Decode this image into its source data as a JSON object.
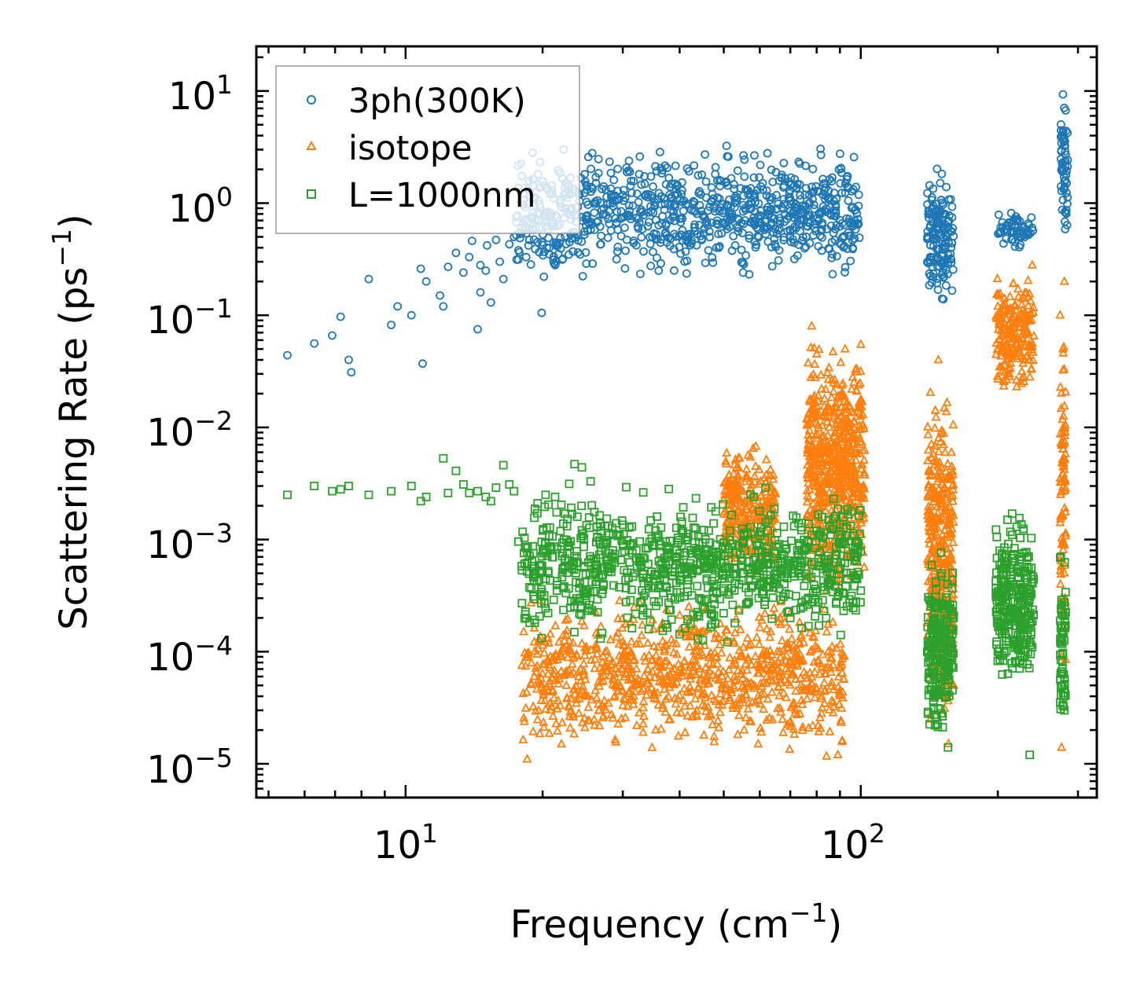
{
  "chart_data": {
    "type": "scatter",
    "xscale": "log",
    "yscale": "log",
    "xlim": [
      4.7,
      330
    ],
    "ylim": [
      5e-06,
      25
    ],
    "xlabel": {
      "main": "Frequency (cm",
      "sup": "−1",
      "close": ")"
    },
    "ylabel": {
      "main": "Scattering Rate (ps",
      "sup": "−1",
      "close": ")"
    },
    "xticks": [
      {
        "base": "10",
        "exp": "1",
        "value": 10
      },
      {
        "base": "10",
        "exp": "2",
        "value": 100
      }
    ],
    "yticks": [
      {
        "base": "10",
        "exp": "1",
        "value": 10
      },
      {
        "base": "10",
        "exp": "0",
        "value": 1
      },
      {
        "base": "10",
        "exp": "−1",
        "value": 0.1
      },
      {
        "base": "10",
        "exp": "−2",
        "value": 0.01
      },
      {
        "base": "10",
        "exp": "−3",
        "value": 0.001
      },
      {
        "base": "10",
        "exp": "−4",
        "value": 0.0001
      },
      {
        "base": "10",
        "exp": "−5",
        "value": 1e-05
      }
    ],
    "legend": {
      "position": "top-left"
    },
    "series": [
      {
        "name": "3ph(300K)",
        "marker": "circle",
        "color": "#1f77b4",
        "x": [
          5.5,
          6.3,
          6.9,
          7.2,
          7.5,
          7.6,
          8.3,
          9.3,
          9.6,
          10.3,
          10.8,
          10.9,
          11.1,
          11.9,
          12.1,
          12.4,
          12.9,
          13.4,
          13.8,
          14.0,
          14.4,
          14.6,
          14.6,
          15.0,
          15.1,
          15.4,
          15.8,
          16.1,
          16.4,
          16.9,
          17.3,
          17.7,
          18.0,
          18.4,
          19.0,
          19.5,
          19.9,
          20.3,
          20.8,
          21.3,
          21.8,
          22.4,
          22.9,
          23.5
        ],
        "y": [
          0.044,
          0.056,
          0.066,
          0.097,
          0.04,
          0.031,
          0.21,
          0.082,
          0.12,
          0.1,
          0.26,
          0.037,
          0.2,
          0.15,
          0.12,
          0.27,
          0.36,
          0.24,
          0.33,
          0.46,
          0.075,
          0.16,
          0.28,
          0.25,
          0.42,
          0.13,
          0.47,
          0.3,
          0.21,
          0.43,
          0.5,
          0.38,
          0.6,
          0.33,
          0.75,
          0.45,
          0.105,
          0.62,
          0.8,
          0.28,
          1.05,
          0.9,
          1.2,
          0.55
        ],
        "clusters": [
          {
            "x": [
              17.5,
              100
            ],
            "y": [
              0.18,
              3.7
            ],
            "note": "dense band"
          },
          {
            "x": [
              140,
              160
            ],
            "y": [
              0.09,
              2.5
            ],
            "note": "dense band"
          },
          {
            "x": [
              200,
              240
            ],
            "y": [
              0.35,
              0.9
            ],
            "note": "dense band"
          },
          {
            "x": [
              275,
              285
            ],
            "y": [
              0.36,
              12
            ],
            "note": "dense band"
          }
        ]
      },
      {
        "name": "isotope",
        "marker": "triangle",
        "color": "#ff7f0e",
        "x": [
          18.5,
          22,
          26,
          30,
          34,
          38,
          42,
          46,
          50,
          54,
          58,
          62,
          66,
          70,
          74,
          78,
          80,
          82,
          85,
          88,
          92,
          96,
          100,
          142,
          148,
          152,
          156,
          160,
          200,
          205,
          212,
          220,
          228,
          234,
          238,
          276,
          278,
          280
        ],
        "y": [
          1.1e-05,
          1.5e-05,
          2.2e-05,
          3.3e-05,
          5.2e-05,
          7.5e-05,
          0.00011,
          0.00024,
          0.00075,
          0.0023,
          0.0065,
          0.0021,
          0.00055,
          0.00022,
          0.00014,
          0.08,
          0.045,
          0.022,
          0.015,
          0.015,
          0.019,
          0.028,
          0.055,
          2.5e-05,
          0.04,
          0.007,
          0.0014,
          5e-05,
          0.12,
          0.08,
          0.03,
          0.023,
          0.028,
          0.055,
          0.28,
          1.4e-05,
          0.05,
          0.2
        ],
        "clusters": [
          {
            "x": [
              18,
              92
            ],
            "y": [
              1e-05,
              0.0004
            ],
            "note": "dense band"
          },
          {
            "x": [
              50,
              65
            ],
            "y": [
              0.0004,
              0.008
            ],
            "note": "peak"
          },
          {
            "x": [
              76,
              102
            ],
            "y": [
              0.0002,
              0.09
            ],
            "note": "dense band"
          },
          {
            "x": [
              140,
              160
            ],
            "y": [
              1e-05,
              0.045
            ],
            "note": "dense band"
          },
          {
            "x": [
              198,
              240
            ],
            "y": [
              0.015,
              0.3
            ],
            "note": "dense band"
          },
          {
            "x": [
              274,
              282
            ],
            "y": [
              3e-05,
              0.22
            ],
            "note": "dense band"
          }
        ]
      },
      {
        "name": "L=1000nm",
        "marker": "square",
        "color": "#2ca02c",
        "x": [
          5.5,
          6.3,
          6.9,
          7.2,
          7.5,
          8.3,
          9.3,
          10.3,
          10.8,
          11.1,
          12.1,
          12.4,
          12.9,
          13.4,
          13.8,
          14.4,
          15.0,
          15.4,
          15.8,
          16.4,
          16.9,
          17.3,
          17.7,
          18.0,
          18.4,
          19.5,
          20.3,
          21.3,
          22.4,
          23.5,
          24.4,
          25.5,
          27.2,
          29.5,
          33.0,
          36.0,
          40.0,
          45.0,
          50.0,
          55.0,
          60.0,
          65.0,
          70.0,
          75.0,
          80.0,
          85.0,
          90.0,
          95.0,
          100.0,
          140,
          145,
          150,
          155,
          160,
          200,
          205,
          210,
          215,
          220,
          230,
          235,
          275,
          278,
          280
        ],
        "y": [
          0.0025,
          0.003,
          0.0027,
          0.0028,
          0.003,
          0.0025,
          0.0027,
          0.003,
          0.0022,
          0.0024,
          0.0053,
          0.0026,
          0.0041,
          0.0031,
          0.0026,
          0.0027,
          0.0024,
          0.0022,
          0.0029,
          0.0046,
          0.0031,
          0.0027,
          0.00096,
          0.00058,
          0.0002,
          0.0021,
          0.0025,
          0.0024,
          0.0017,
          0.0047,
          0.0044,
          0.0033,
          0.0009,
          0.0011,
          0.0006,
          0.00064,
          0.00075,
          0.00025,
          0.00035,
          0.0005,
          0.0004,
          0.0004,
          0.0002,
          0.0008,
          0.0012,
          0.0015,
          0.0011,
          0.0007,
          0.00035,
          0.0001,
          0.0002,
          0.0005,
          0.0004,
          0.0002,
          0.0001,
          0.0003,
          0.0015,
          0.0017,
          0.0013,
          0.00012,
          1.2e-05,
          0.0007,
          0.00015,
          5e-05
        ],
        "clusters": [
          {
            "x": [
              18,
              100
            ],
            "y": [
              0.0001,
              0.0035
            ],
            "note": "dense band"
          },
          {
            "x": [
              140,
              160
            ],
            "y": [
              1e-05,
              0.001
            ],
            "note": "dense band"
          },
          {
            "x": [
              198,
              240
            ],
            "y": [
              3.5e-05,
              0.002
            ],
            "note": "dense band"
          },
          {
            "x": [
              274,
              282
            ],
            "y": [
              1.8e-05,
              0.0009
            ],
            "note": "dense band"
          }
        ]
      }
    ]
  }
}
